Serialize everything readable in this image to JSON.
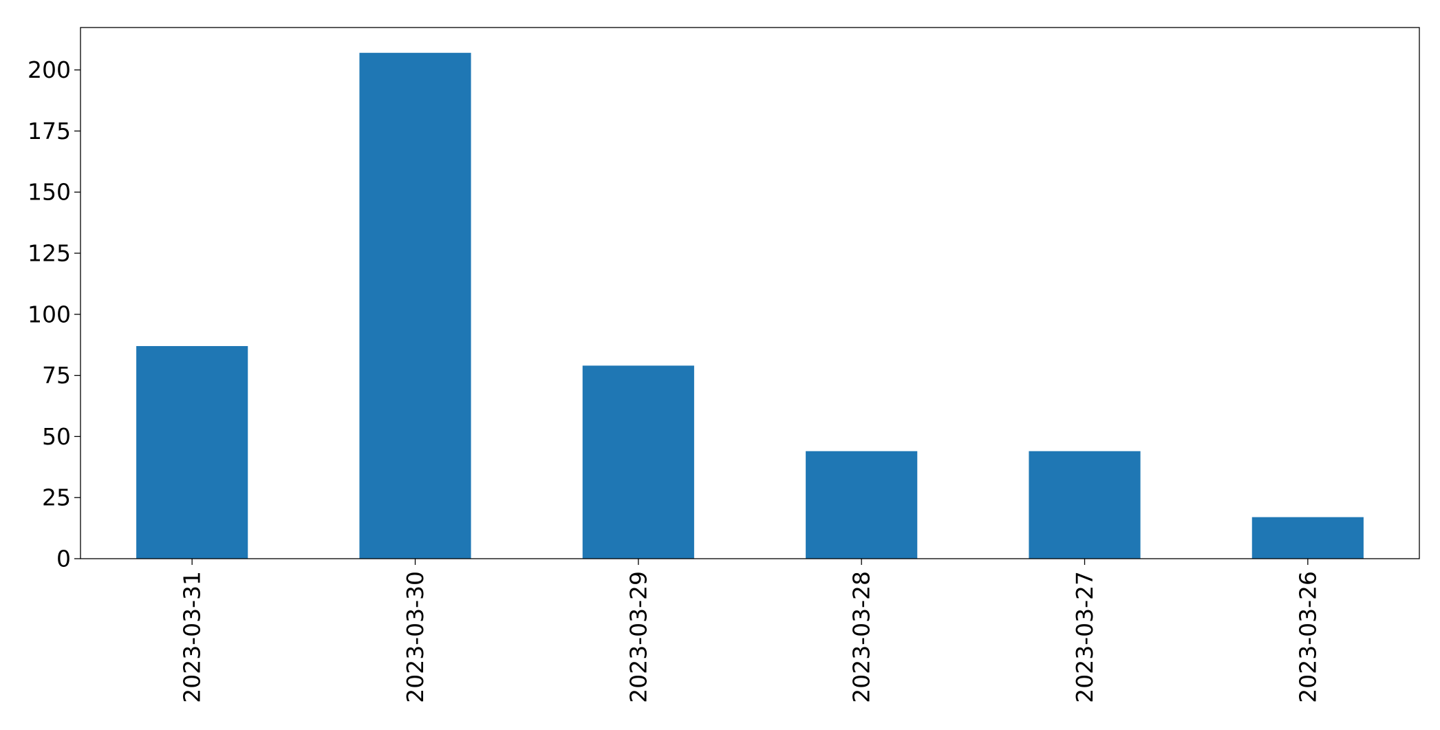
{
  "chart_data": {
    "type": "bar",
    "title": "",
    "xlabel": "",
    "ylabel": "",
    "categories": [
      "2023-03-31",
      "2023-03-30",
      "2023-03-29",
      "2023-03-28",
      "2023-03-27",
      "2023-03-26"
    ],
    "series": [
      {
        "values": [
          87,
          207,
          79,
          44,
          44,
          17
        ],
        "color": "#1f77b4"
      }
    ],
    "ylim": [
      0,
      217.35
    ],
    "yticks": [
      0,
      25,
      50,
      75,
      100,
      125,
      150,
      175,
      200
    ],
    "ytick_labels": [
      "0",
      "25",
      "50",
      "75",
      "100",
      "125",
      "150",
      "175",
      "200"
    ],
    "xtick_rotation": "vertical",
    "grid": false,
    "legend": "none"
  }
}
